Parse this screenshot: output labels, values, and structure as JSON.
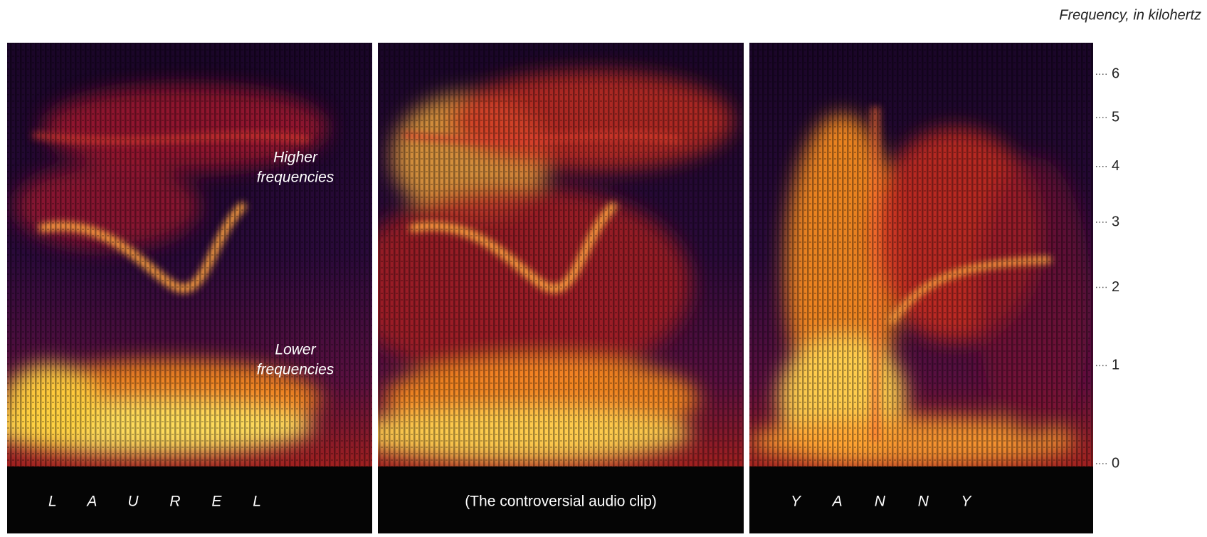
{
  "chart_data": {
    "type": "spectrogram",
    "y_label": "Frequency, in kilohertz",
    "panels": [
      "L A U R E L",
      "(The controversial audio clip)",
      "Y A N N Y"
    ],
    "annotations": [
      [
        "Higher",
        "frequencies"
      ],
      [
        "Lower",
        "frequencies"
      ]
    ],
    "yscale": "log1p",
    "yscale_offset": 3.5,
    "ylim": [
      0,
      6.8
    ],
    "yticks": [
      0,
      1,
      2,
      3,
      4,
      5,
      6
    ]
  }
}
